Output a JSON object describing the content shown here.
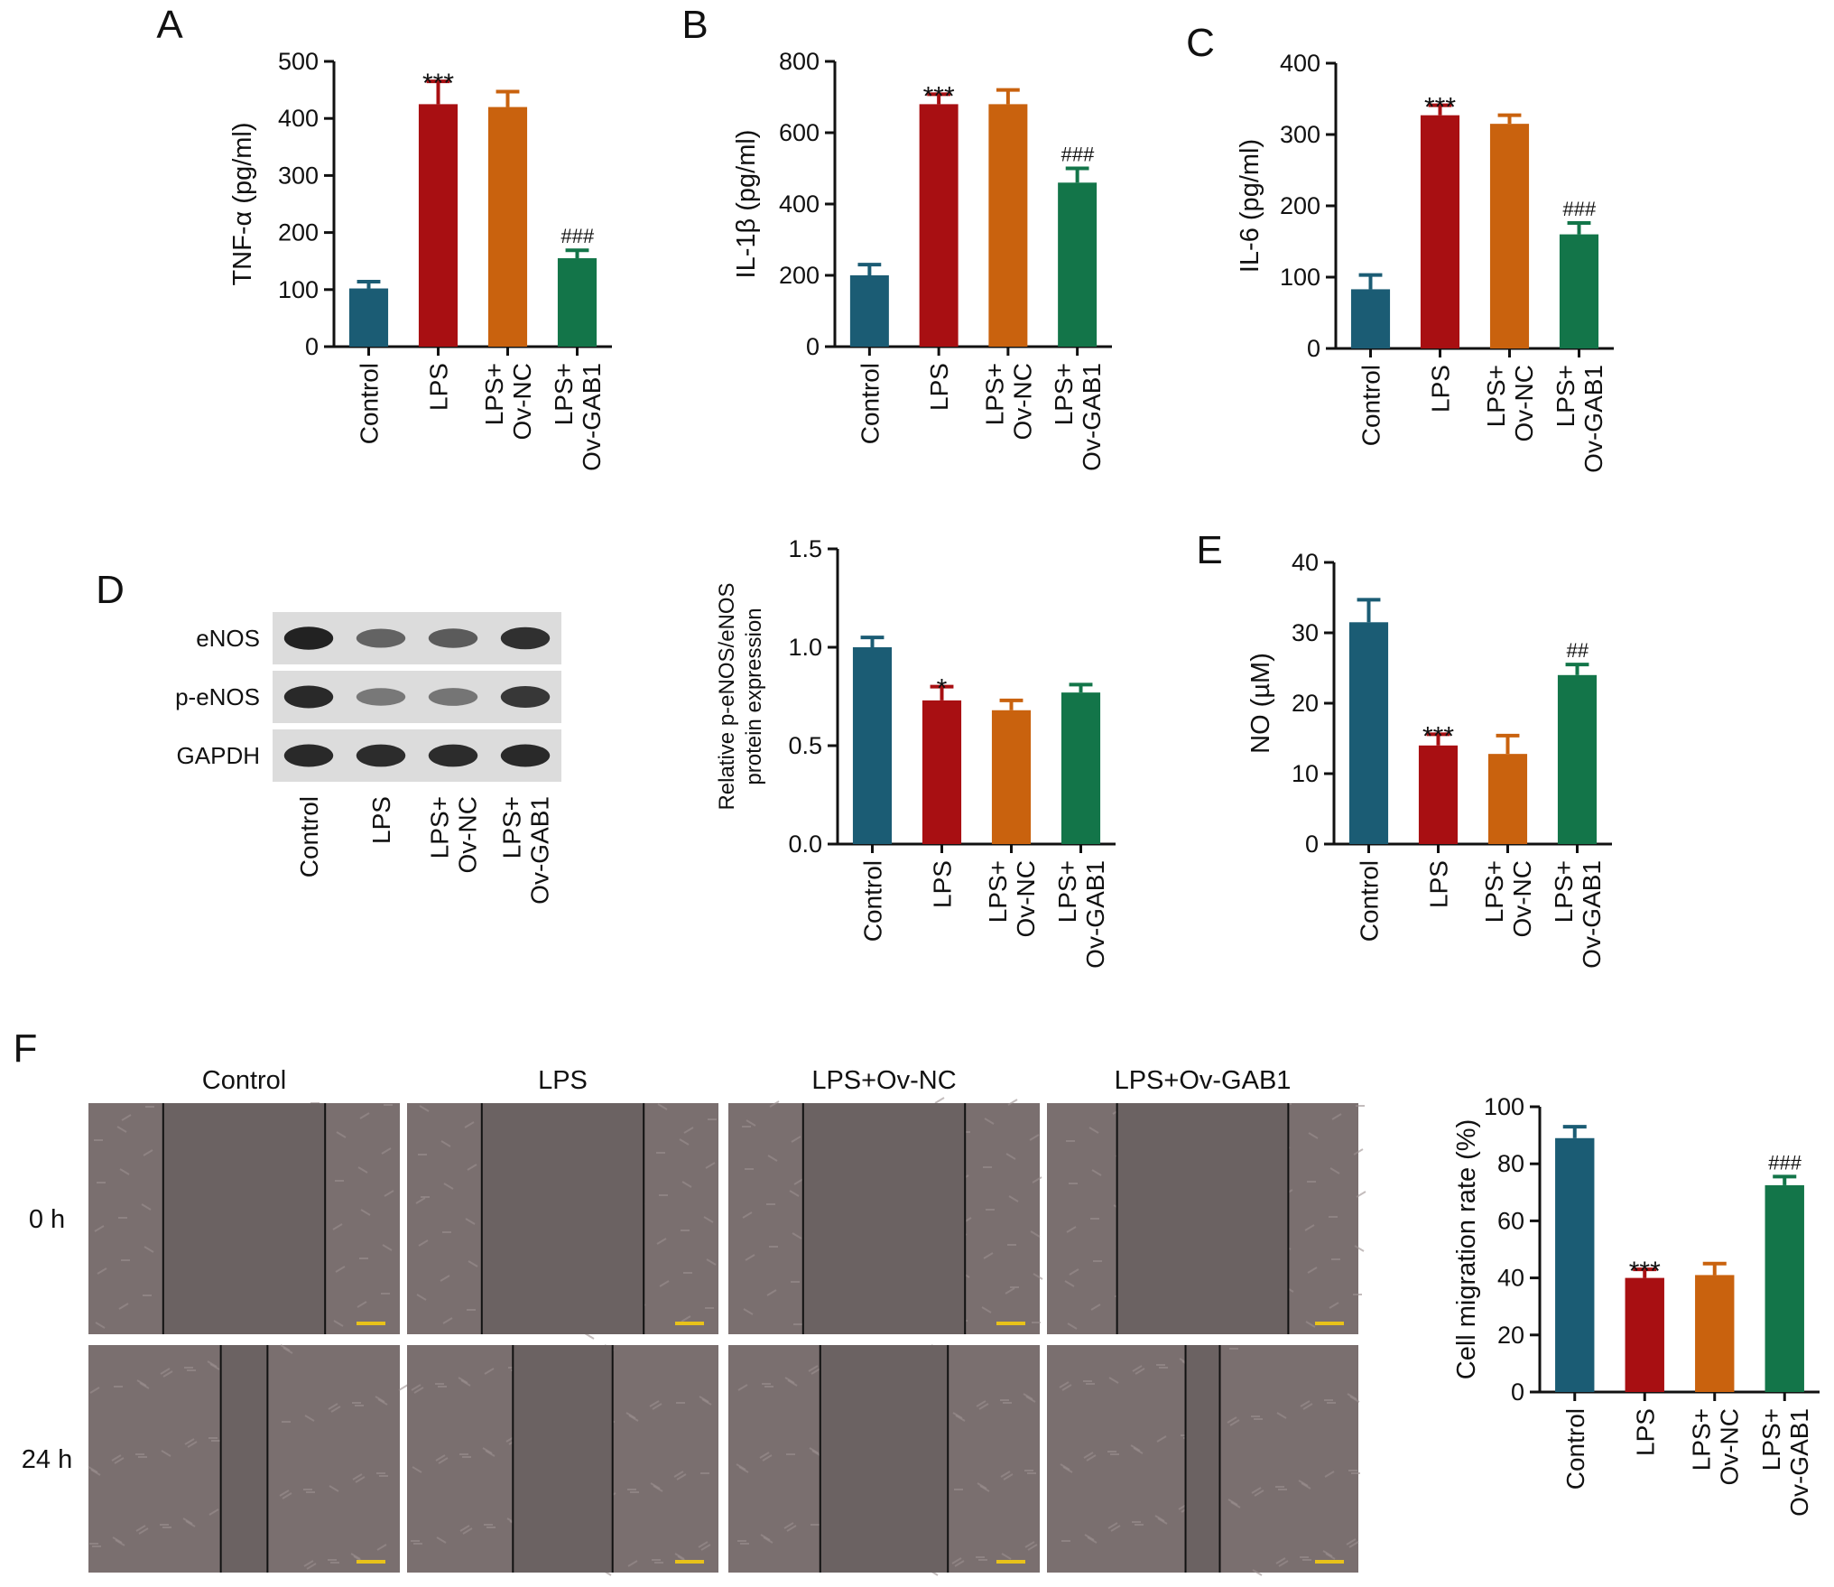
{
  "colors": {
    "control": "#1b5c74",
    "lps": "#a80f12",
    "lps_ov_nc": "#c9620e",
    "lps_ov_gab1": "#137549",
    "axis": "#111111",
    "blot_bg": "#dcdcdc",
    "band": "#1a1a1a",
    "micrograph": "#7a6f6f",
    "scratch": "#6b6262",
    "scale_bar": "#e8c21a"
  },
  "groups": [
    "Control",
    "LPS",
    "LPS+\nOv-NC",
    "LPS+\nOv-GAB1"
  ],
  "chart_data": [
    {
      "id": "A",
      "type": "bar",
      "panel_label": "A",
      "categories": [
        "Control",
        "LPS",
        "LPS+\nOv-NC",
        "LPS+\nOv-GAB1"
      ],
      "values": [
        102,
        425,
        420,
        155
      ],
      "errors": [
        12,
        40,
        27,
        14
      ],
      "annotations": [
        "",
        "***",
        "",
        "###"
      ],
      "ylabel": "TNF-α (pg/ml)",
      "ylim": [
        0,
        500
      ],
      "yticks": [
        "0",
        "100",
        "200",
        "300",
        "400",
        "500"
      ],
      "grid": false
    },
    {
      "id": "B",
      "type": "bar",
      "panel_label": "B",
      "categories": [
        "Control",
        "LPS",
        "LPS+\nOv-NC",
        "LPS+\nOv-GAB1"
      ],
      "values": [
        200,
        680,
        680,
        460
      ],
      "errors": [
        30,
        28,
        40,
        40
      ],
      "annotations": [
        "",
        "***",
        "",
        "###"
      ],
      "ylabel": "IL-1β (pg/ml)",
      "ylim": [
        0,
        800
      ],
      "yticks": [
        "0",
        "200",
        "400",
        "600",
        "800"
      ],
      "grid": false
    },
    {
      "id": "C",
      "type": "bar",
      "panel_label": "C",
      "categories": [
        "Control",
        "LPS",
        "LPS+\nOv-NC",
        "LPS+\nOv-GAB1"
      ],
      "values": [
        83,
        327,
        315,
        160
      ],
      "errors": [
        20,
        14,
        12,
        16
      ],
      "annotations": [
        "",
        "***",
        "",
        "###"
      ],
      "ylabel": "IL-6 (pg/ml)",
      "ylim": [
        0,
        400
      ],
      "yticks": [
        "0",
        "100",
        "200",
        "300",
        "400"
      ],
      "grid": false
    },
    {
      "id": "D",
      "type": "bar",
      "panel_label": "",
      "categories": [
        "Control",
        "LPS",
        "LPS+\nOv-NC",
        "LPS+\nOv-GAB1"
      ],
      "values": [
        1.0,
        0.73,
        0.68,
        0.77
      ],
      "errors": [
        0.05,
        0.07,
        0.05,
        0.04
      ],
      "annotations": [
        "",
        "*",
        "",
        ""
      ],
      "ylabel": "Relative p-eNOS/eNOS\nprotein expression",
      "ylim": [
        0,
        1.5
      ],
      "yticks": [
        "0.0",
        "0.5",
        "1.0",
        "1.5"
      ],
      "grid": false
    },
    {
      "id": "E",
      "type": "bar",
      "panel_label": "E",
      "categories": [
        "Control",
        "LPS",
        "LPS+\nOv-NC",
        "LPS+\nOv-GAB1"
      ],
      "values": [
        31.5,
        14,
        12.8,
        24
      ],
      "errors": [
        3.2,
        1.6,
        2.6,
        1.5
      ],
      "annotations": [
        "",
        "***",
        "",
        "##"
      ],
      "ylabel": "NO (µM)",
      "ylim": [
        0,
        40
      ],
      "yticks": [
        "0",
        "10",
        "20",
        "30",
        "40"
      ],
      "grid": false
    },
    {
      "id": "F",
      "type": "bar",
      "panel_label": "",
      "categories": [
        "Control",
        "LPS",
        "LPS+\nOv-NC",
        "LPS+\nOv-GAB1"
      ],
      "values": [
        89,
        40,
        41,
        72.5
      ],
      "errors": [
        4,
        3,
        4,
        3
      ],
      "annotations": [
        "",
        "***",
        "",
        "###"
      ],
      "ylabel": "Cell migration rate (%)",
      "ylim": [
        0,
        100
      ],
      "yticks": [
        "0",
        "20",
        "40",
        "60",
        "80",
        "100"
      ],
      "grid": false
    }
  ],
  "blot": {
    "panel_label": "D",
    "proteins": [
      {
        "name": "eNOS",
        "intensities": [
          0.95,
          0.5,
          0.55,
          0.85
        ]
      },
      {
        "name": "p-eNOS",
        "intensities": [
          0.9,
          0.35,
          0.38,
          0.8
        ]
      },
      {
        "name": "GAPDH",
        "intensities": [
          0.9,
          0.88,
          0.88,
          0.9
        ]
      }
    ],
    "lanes": [
      "Control",
      "LPS",
      "LPS+\nOv-NC",
      "LPS+\nOv-GAB1"
    ]
  },
  "migration": {
    "panel_label": "F",
    "columns": [
      "Control",
      "LPS",
      "LPS+Ov-NC",
      "LPS+Ov-GAB1"
    ],
    "rows": [
      "0 h",
      "24 h"
    ],
    "gap_fraction": [
      [
        0.52,
        0.52,
        0.52,
        0.55
      ],
      [
        0.15,
        0.32,
        0.41,
        0.11
      ]
    ]
  }
}
